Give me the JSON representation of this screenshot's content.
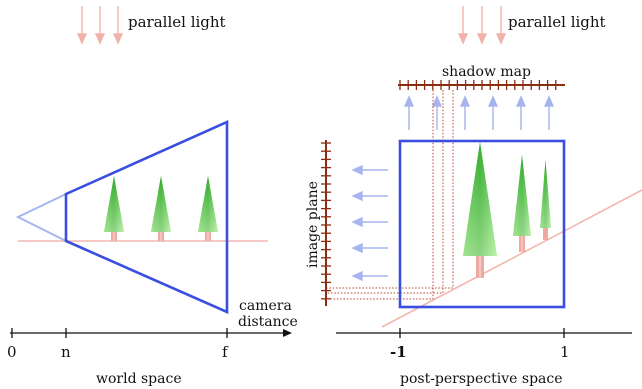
{
  "left_panel": {
    "light_label": "parallel light",
    "axis_ticks": [
      "0",
      "n",
      "f"
    ],
    "axis_label": "camera\ndistance",
    "space_label": "world space"
  },
  "right_panel": {
    "light_label": "parallel light",
    "shadow_map_label": "shadow map",
    "image_plane_label": "image plane",
    "axis_ticks": [
      "-1",
      "1"
    ],
    "space_label": "post-perspective space"
  },
  "colors": {
    "frustum": "#3a4fe0",
    "light_arrow": "#f2b2aa",
    "light_ray_blue": "#a8b4ee",
    "ground": "#f3b8b0",
    "ruler": "#8b2d10",
    "tree_top": "#3cb832",
    "tree_bottom": "#d8f8c8",
    "trunk": "#f0a8a0",
    "projection_line": "#b84030"
  }
}
